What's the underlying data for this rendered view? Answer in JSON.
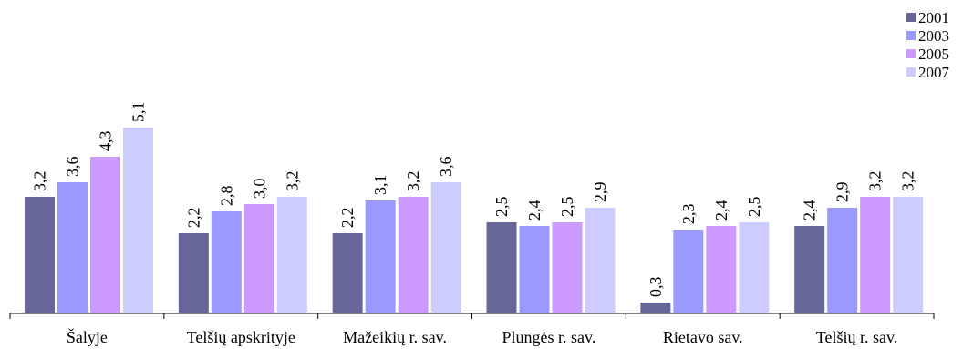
{
  "chart_data": {
    "type": "bar",
    "title": "",
    "xlabel": "",
    "ylabel": "",
    "ylim": [
      0,
      5.5
    ],
    "grid": false,
    "legend": "top-right",
    "categories": [
      "Šalyje",
      "Telšių apskrityje",
      "Mažeikių r. sav.",
      "Plungės r. sav.",
      "Rietavo sav.",
      "Telšių r. sav."
    ],
    "series": [
      {
        "name": "2001",
        "color": "#666699",
        "values": [
          3.2,
          2.2,
          2.2,
          2.5,
          0.3,
          2.4
        ],
        "labels": [
          "3,2",
          "2,2",
          "2,2",
          "2,5",
          "0,3",
          "2,4"
        ]
      },
      {
        "name": "2003",
        "color": "#9999FF",
        "values": [
          3.6,
          2.8,
          3.1,
          2.4,
          2.3,
          2.9
        ],
        "labels": [
          "3,6",
          "2,8",
          "3,1",
          "2,4",
          "2,3",
          "2,9"
        ]
      },
      {
        "name": "2005",
        "color": "#CC99FF",
        "values": [
          4.3,
          3.0,
          3.2,
          2.5,
          2.4,
          3.2
        ],
        "labels": [
          "4,3",
          "3,0",
          "3,2",
          "2,5",
          "2,4",
          "3,2"
        ]
      },
      {
        "name": "2007",
        "color": "#CCCCFF",
        "values": [
          5.1,
          3.2,
          3.6,
          2.9,
          2.5,
          3.2
        ],
        "labels": [
          "5,1",
          "3,2",
          "3,6",
          "2,9",
          "2,5",
          "3,2"
        ]
      }
    ]
  }
}
